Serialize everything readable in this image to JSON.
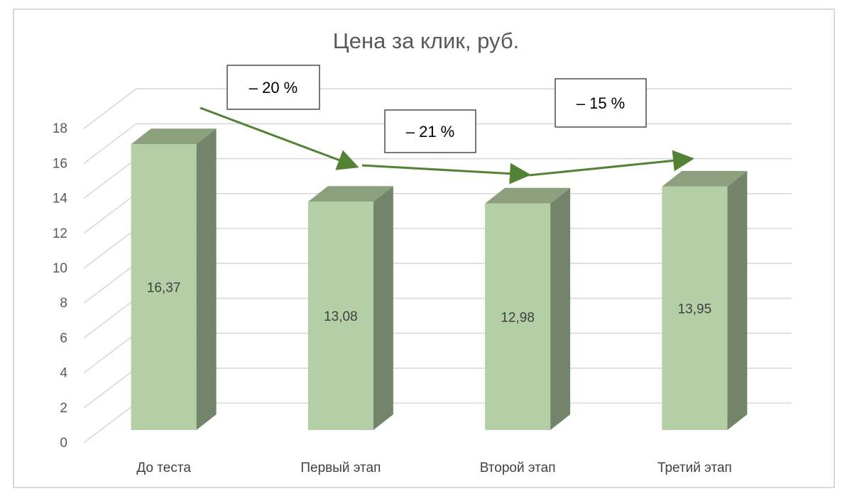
{
  "colors": {
    "bar_front": "#b4cea6",
    "bar_top": "#8ca07d",
    "bar_side": "#72856b",
    "gridline": "#d9d9d9",
    "arrow": "#548235"
  },
  "chart_data": {
    "type": "bar",
    "style": "3d-column",
    "title": "Цена за клик, руб.",
    "categories": [
      "До теста",
      "Первый этап",
      "Второй этап",
      "Третий этап"
    ],
    "values": [
      16.37,
      13.08,
      12.98,
      13.95
    ],
    "data_labels": [
      "16,37",
      "13,08",
      "12,98",
      "13,95"
    ],
    "ylim": [
      0,
      18
    ],
    "y_ticks": [
      "0",
      "2",
      "4",
      "6",
      "8",
      "10",
      "12",
      "14",
      "16",
      "18"
    ],
    "grid": true,
    "legend": "none",
    "annotations": [
      {
        "text": "– 20 %"
      },
      {
        "text": "– 21 %"
      },
      {
        "text": "– 15 %"
      }
    ]
  }
}
